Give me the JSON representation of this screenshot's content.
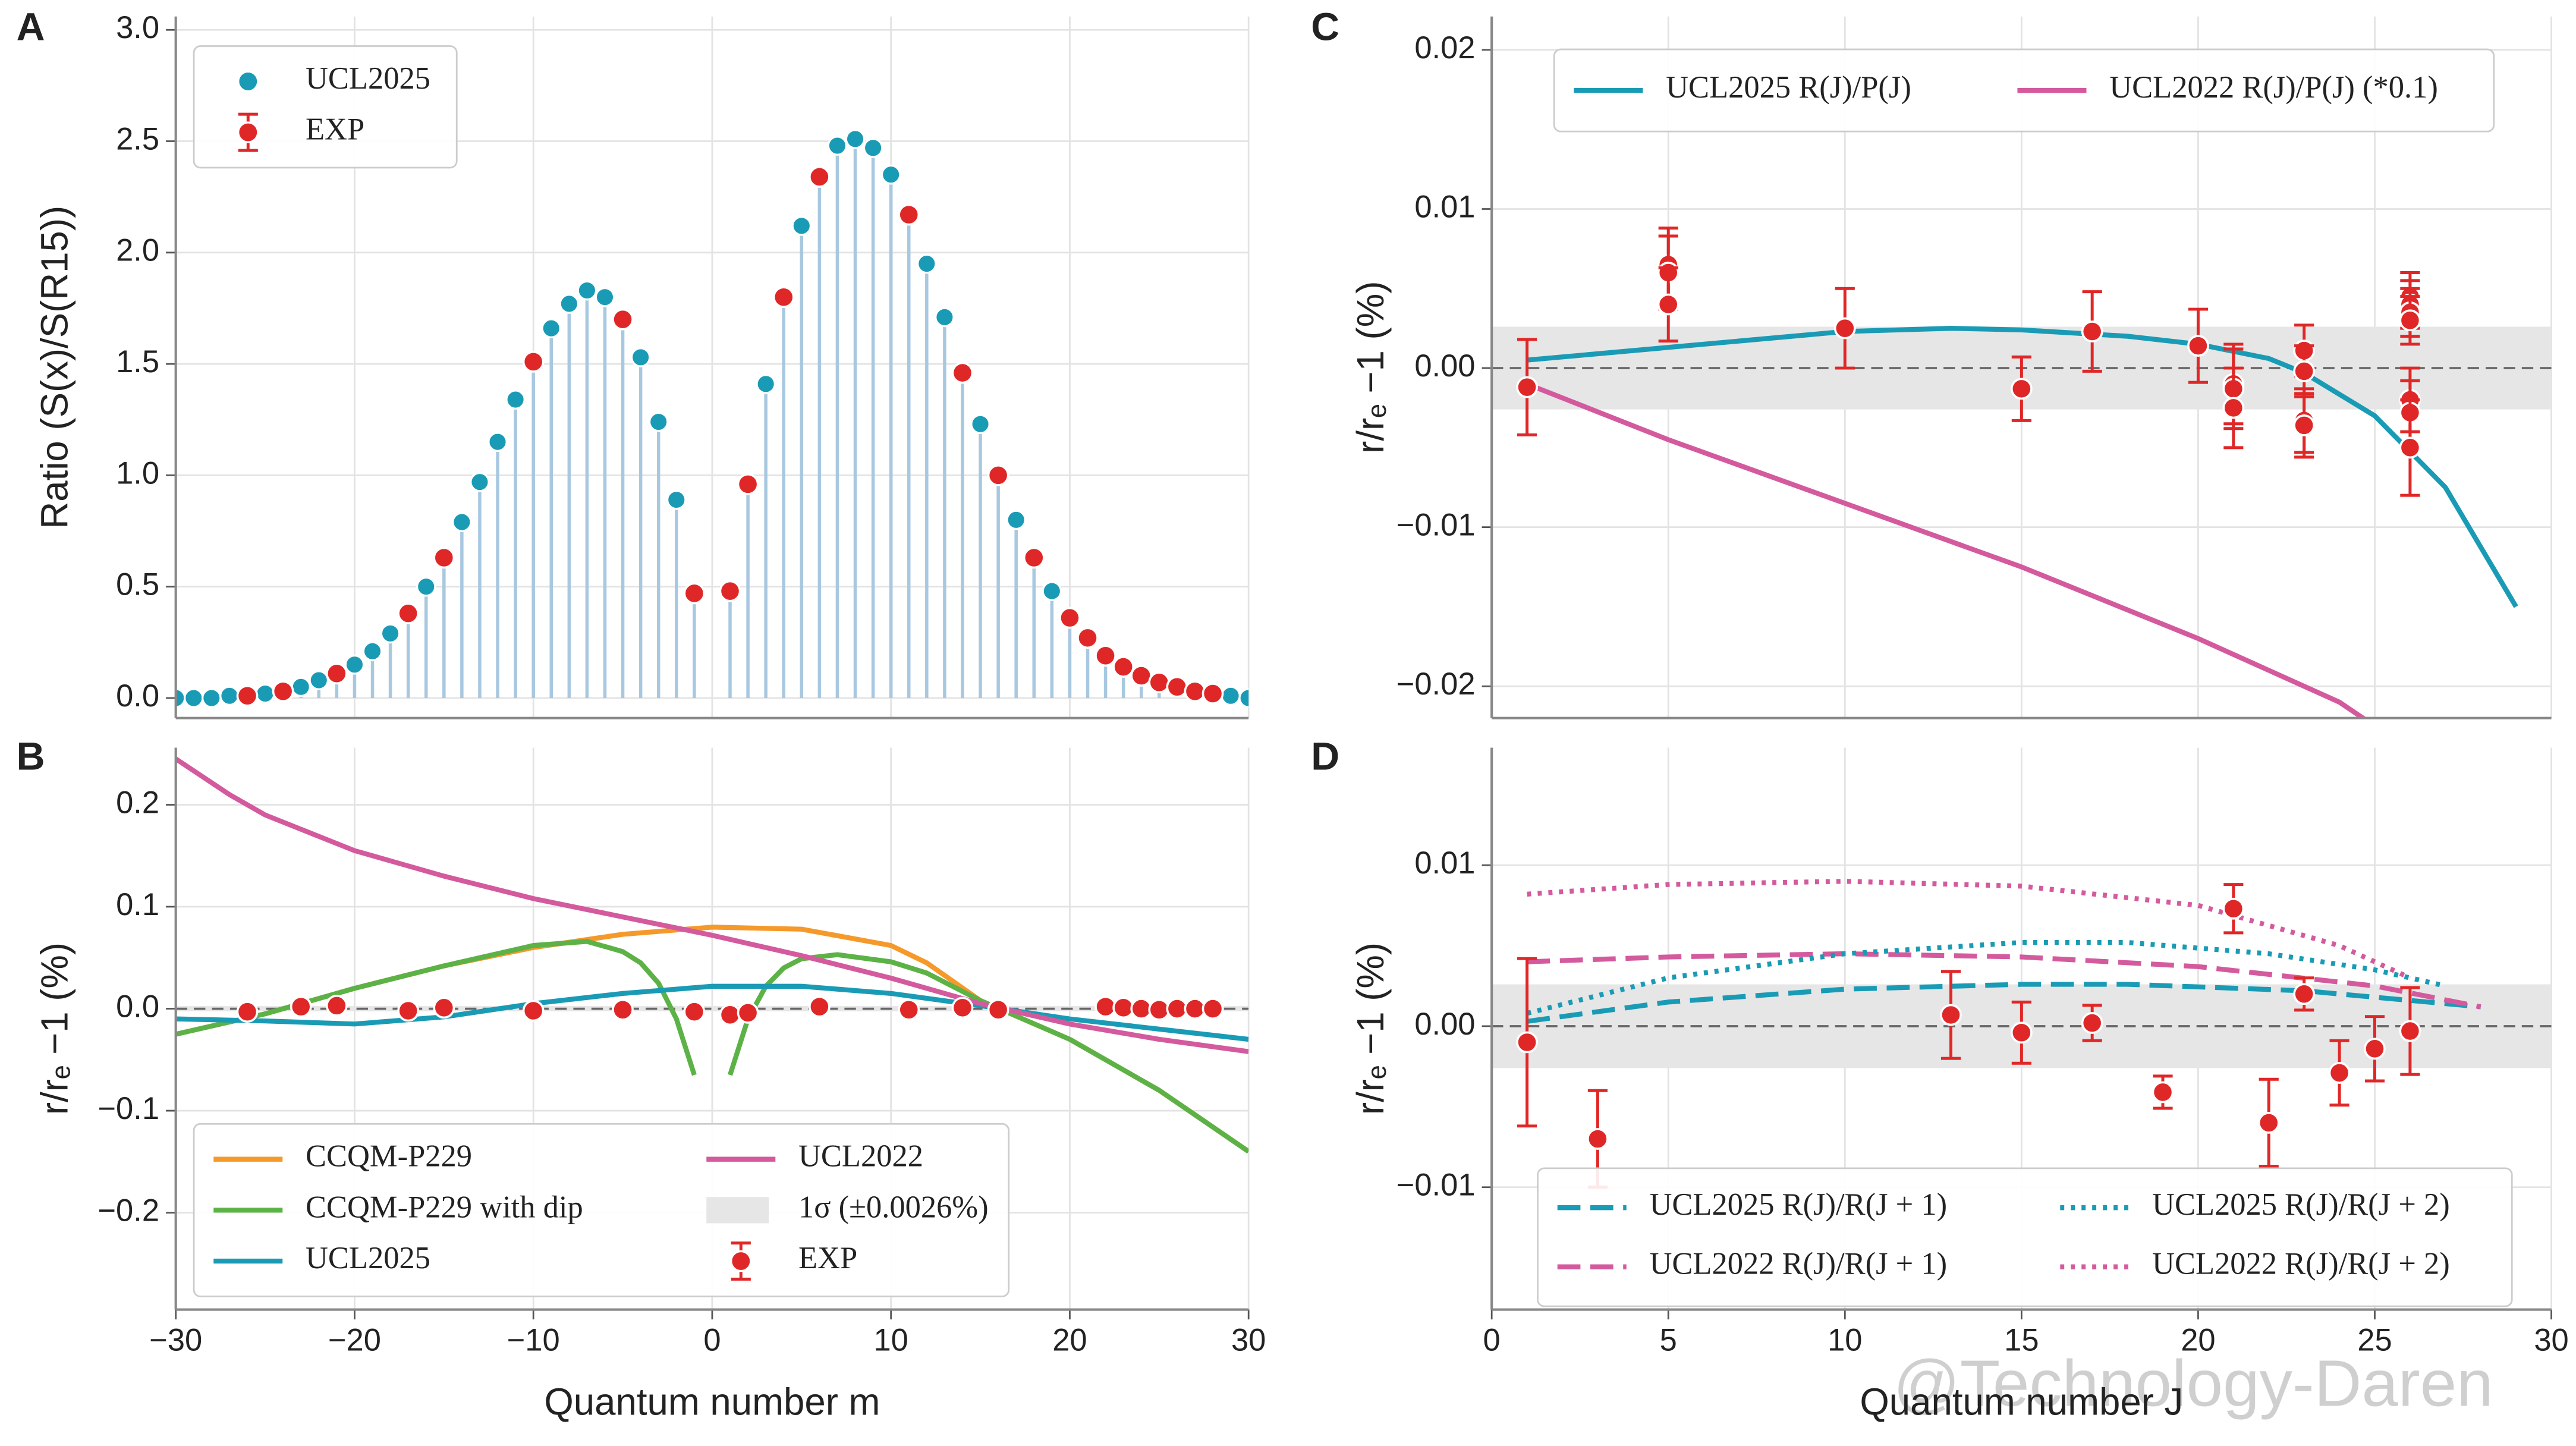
{
  "chart_data": [
    {
      "type": "stem",
      "panel": "A",
      "ylabel": "Ratio (S(x)/S(R15))",
      "xlim": [
        -30,
        30
      ],
      "xticks": [
        -30,
        -20,
        -10,
        0,
        10,
        20,
        30
      ],
      "xtick_labels": false,
      "ylim": [
        -0.09,
        3.06
      ],
      "yticks": [
        {
          "value": 0,
          "label": "0.0"
        },
        0.5,
        {
          "value": 1,
          "label": "1.0"
        },
        1.5,
        {
          "value": 2,
          "label": "2.0"
        },
        2.5,
        {
          "value": 3,
          "label": "3.0"
        }
      ],
      "grid": true,
      "stem_color": "#a8c8e0",
      "legend_cols": 1,
      "series": [
        {
          "name": "UCL2025",
          "kind": "stem",
          "color": "#1a9bb5",
          "x": [
            -30,
            -29,
            -28,
            -27,
            -26,
            -25,
            -24,
            -23,
            -22,
            -21,
            -20,
            -19,
            -18,
            -17,
            -16,
            -15,
            -14,
            -13,
            -12,
            -11,
            -10,
            -9,
            -8,
            -7,
            -6,
            -5,
            -4,
            -3,
            -2,
            -1,
            1,
            2,
            3,
            4,
            5,
            6,
            7,
            8,
            9,
            10,
            11,
            12,
            13,
            14,
            15,
            16,
            17,
            18,
            19,
            20,
            21,
            22,
            23,
            24,
            25,
            26,
            27,
            28,
            29,
            30
          ],
          "values": [
            0.0,
            0.0,
            0.0,
            0.01,
            0.01,
            0.02,
            0.03,
            0.05,
            0.08,
            0.11,
            0.15,
            0.21,
            0.29,
            0.38,
            0.5,
            0.63,
            0.79,
            0.97,
            1.15,
            1.34,
            1.51,
            1.66,
            1.77,
            1.83,
            1.8,
            1.7,
            1.53,
            1.24,
            0.89,
            0.47,
            0.48,
            0.96,
            1.41,
            1.8,
            2.12,
            2.34,
            2.48,
            2.51,
            2.47,
            2.35,
            2.17,
            1.95,
            1.71,
            1.46,
            1.23,
            1.0,
            0.8,
            0.63,
            0.48,
            0.36,
            0.27,
            0.19,
            0.14,
            0.1,
            0.07,
            0.05,
            0.03,
            0.02,
            0.01,
            0.0
          ]
        },
        {
          "name": "EXP",
          "kind": "points",
          "color": "#e02727",
          "x": [
            -26,
            -24,
            -21,
            -17,
            -15,
            -10,
            -5,
            -1,
            1,
            2,
            4,
            6,
            11,
            14,
            16,
            18,
            20,
            21,
            22,
            23,
            24,
            25,
            26,
            27,
            28
          ],
          "values": [
            0.01,
            0.03,
            0.11,
            0.38,
            0.63,
            1.51,
            1.7,
            0.47,
            0.48,
            0.96,
            1.8,
            2.34,
            2.17,
            1.46,
            1.0,
            0.63,
            0.36,
            0.27,
            0.19,
            0.14,
            0.1,
            0.07,
            0.05,
            0.03,
            0.02
          ]
        }
      ]
    },
    {
      "type": "line",
      "panel": "B",
      "ylabel": "r/rₑ −1 (%)",
      "xlabel": "Quantum number  m",
      "xlim": [
        -30,
        30
      ],
      "xticks": [
        {
          "value": -30,
          "label": "−30"
        },
        {
          "value": -20,
          "label": "−20"
        },
        {
          "value": -10,
          "label": "−10"
        },
        0,
        10,
        20,
        30
      ],
      "ylim": [
        -0.295,
        0.256
      ],
      "yticks": [
        {
          "value": -0.2,
          "label": "−0.2"
        },
        {
          "value": -0.1,
          "label": "−0.1"
        },
        {
          "value": 0,
          "label": "0.0"
        },
        0.1,
        0.2
      ],
      "grid": true,
      "zero_line": true,
      "band": 0.0026,
      "band_label": "1σ (±0.0026%)",
      "band_color": "#e6e6e6",
      "legend_cols": 2,
      "series": [
        {
          "name": "CCQM-P229",
          "kind": "line",
          "color": "#f5992a",
          "x": [
            -30,
            -25,
            -20,
            -15,
            -10,
            -5,
            0,
            5,
            10,
            12,
            15,
            20,
            25,
            30
          ],
          "values": [
            -0.025,
            -0.005,
            0.02,
            0.042,
            0.06,
            0.073,
            0.08,
            0.078,
            0.062,
            0.045,
            0.008,
            -0.03,
            -0.08,
            -0.14
          ]
        },
        {
          "name": "CCQM-P229 with dip",
          "kind": "line",
          "color": "#5cb246",
          "x": [
            -30,
            -25,
            -20,
            -15,
            -10,
            -7,
            -5,
            -4,
            -3,
            -2,
            -1,
            0,
            1,
            2,
            3,
            4,
            5,
            7,
            10,
            12,
            15,
            20,
            25,
            30
          ],
          "values": [
            -0.025,
            -0.005,
            0.02,
            0.042,
            0.062,
            0.066,
            0.056,
            0.045,
            0.025,
            -0.01,
            -0.065,
            null,
            -0.065,
            -0.01,
            0.022,
            0.04,
            0.049,
            0.053,
            0.046,
            0.035,
            0.008,
            -0.03,
            -0.08,
            -0.14
          ]
        },
        {
          "name": "UCL2025",
          "kind": "line",
          "color": "#1a9bb5",
          "x": [
            -30,
            -25,
            -20,
            -15,
            -10,
            -5,
            0,
            5,
            10,
            15,
            20,
            25,
            30
          ],
          "values": [
            -0.01,
            -0.012,
            -0.015,
            -0.008,
            0.005,
            0.015,
            0.022,
            0.022,
            0.015,
            0.003,
            -0.01,
            -0.02,
            -0.03
          ]
        },
        {
          "name": "UCL2022",
          "kind": "line",
          "color": "#d45a9e",
          "x": [
            -30,
            -27,
            -25,
            -20,
            -15,
            -10,
            -5,
            0,
            5,
            10,
            15,
            20,
            25,
            30
          ],
          "values": [
            0.245,
            0.21,
            0.19,
            0.155,
            0.13,
            0.108,
            0.09,
            0.072,
            0.052,
            0.03,
            0.005,
            -0.015,
            -0.03,
            -0.042
          ]
        },
        {
          "name": "EXP",
          "kind": "points",
          "color": "#e02727",
          "x": [
            -26,
            -23,
            -21,
            -17,
            -15,
            -10,
            -5,
            -1,
            1,
            2,
            6,
            11,
            14,
            16,
            22,
            23,
            24,
            25,
            26,
            27,
            28
          ],
          "values": [
            -0.003,
            0.002,
            0.003,
            -0.002,
            0.001,
            -0.002,
            -0.001,
            -0.003,
            -0.006,
            -0.004,
            0.002,
            -0.001,
            0.001,
            -0.001,
            0.002,
            0.001,
            0.0,
            -0.001,
            0.0,
            0.0,
            0.0
          ]
        }
      ]
    },
    {
      "type": "line",
      "panel": "C",
      "ylabel": "r/rₑ −1 (%)",
      "xlim": [
        0,
        30
      ],
      "xticks": [
        0,
        5,
        10,
        15,
        20,
        25,
        30
      ],
      "xtick_labels": false,
      "ylim": [
        -0.022,
        0.0221
      ],
      "yticks": [
        {
          "value": -0.02,
          "label": "−0.02"
        },
        {
          "value": -0.01,
          "label": "−0.01"
        },
        {
          "value": 0,
          "label": "0.00"
        },
        0.01,
        0.02
      ],
      "grid": true,
      "zero_line": true,
      "band": 0.0026,
      "band_color": "#e6e6e6",
      "legend_cols": 2,
      "series": [
        {
          "name": "UCL2025  R(J)/P(J)",
          "kind": "line",
          "color": "#1a9bb5",
          "x": [
            1,
            5,
            10,
            13,
            15,
            18,
            20,
            22,
            23,
            25,
            27,
            29
          ],
          "values": [
            0.0005,
            0.0013,
            0.0023,
            0.0025,
            0.0024,
            0.002,
            0.0015,
            0.0006,
            -0.0003,
            -0.003,
            -0.0075,
            -0.015
          ]
        },
        {
          "name": "UCL2022  R(J)/P(J)  (*0.1)",
          "kind": "line",
          "color": "#d45a9e",
          "x": [
            1,
            5,
            10,
            15,
            20,
            24,
            25
          ],
          "values": [
            -0.001,
            -0.0045,
            -0.0085,
            -0.0125,
            -0.017,
            -0.021,
            -0.0225
          ]
        },
        {
          "kind": "points",
          "color": "#e02727",
          "x": [
            1,
            5,
            5,
            5,
            10,
            15,
            17,
            20,
            21,
            21,
            21,
            23,
            23,
            23,
            23,
            26,
            26,
            26,
            26,
            26,
            26,
            26
          ],
          "values": [
            -0.0012,
            0.0065,
            0.006,
            0.004,
            0.0025,
            -0.0013,
            0.0023,
            0.0014,
            -0.001,
            -0.0013,
            -0.0025,
            0.0011,
            -0.0002,
            -0.0033,
            -0.0036,
            0.0045,
            0.004,
            0.0035,
            0.003,
            -0.002,
            -0.0028,
            -0.005
          ],
          "errors": [
            0.003,
            0.0023,
            0.0023,
            0.0023,
            0.0025,
            0.002,
            0.0025,
            0.0023,
            0.0025,
            0.0025,
            0.0025,
            0.0016,
            0.0016,
            0.002,
            0.002,
            0.0015,
            0.0015,
            0.0015,
            0.0015,
            0.002,
            0.002,
            0.003
          ]
        }
      ]
    },
    {
      "type": "line",
      "panel": "D",
      "ylabel": "r/rₑ −1 (%)",
      "xlabel": "Quantum number  J",
      "xlim": [
        0,
        30
      ],
      "xticks": [
        0,
        5,
        10,
        15,
        20,
        25,
        30
      ],
      "ylim": [
        -0.0176,
        0.0173
      ],
      "yticks": [
        {
          "value": -0.01,
          "label": "−0.01"
        },
        {
          "value": 0,
          "label": "0.00"
        },
        0.01
      ],
      "grid": true,
      "zero_line": true,
      "band": 0.0026,
      "band_color": "#e6e6e6",
      "legend_cols": 2,
      "series": [
        {
          "name": "UCL2025 R(J)/R(J + 1)",
          "kind": "line",
          "dash": "dashed",
          "color": "#1a9bb5",
          "x": [
            1,
            5,
            10,
            15,
            18,
            23,
            28
          ],
          "values": [
            0.0003,
            0.0015,
            0.0023,
            0.0026,
            0.0026,
            0.0022,
            0.0012
          ]
        },
        {
          "name": "UCL2022 R(J)/R(J + 1)",
          "kind": "line",
          "dash": "dashed",
          "color": "#d45a9e",
          "x": [
            1,
            5,
            10,
            15,
            20,
            25,
            28
          ],
          "values": [
            0.004,
            0.0043,
            0.0045,
            0.0043,
            0.0037,
            0.0025,
            0.0012
          ]
        },
        {
          "name": "UCL2025  R(J)/R(J + 2)",
          "kind": "line",
          "dash": "dotted",
          "color": "#1a9bb5",
          "x": [
            1,
            5,
            10,
            15,
            18,
            22,
            25,
            27
          ],
          "values": [
            0.0008,
            0.003,
            0.0045,
            0.0052,
            0.0052,
            0.0045,
            0.0035,
            0.0025
          ]
        },
        {
          "name": "UCL2022  R(J)/R(J + 2)",
          "kind": "line",
          "dash": "dotted",
          "color": "#d45a9e",
          "x": [
            1,
            5,
            10,
            15,
            20,
            24,
            26
          ],
          "values": [
            0.0082,
            0.0088,
            0.009,
            0.0087,
            0.0075,
            0.005,
            0.003
          ]
        },
        {
          "kind": "points",
          "color": "#e02727",
          "x": [
            1,
            3,
            13,
            15,
            17,
            19,
            21,
            22,
            23,
            24,
            25,
            26
          ],
          "values": [
            -0.001,
            -0.007,
            0.0007,
            -0.0004,
            0.0002,
            -0.0041,
            0.0073,
            -0.006,
            0.002,
            -0.0029,
            -0.0014,
            -0.0003
          ],
          "errors": [
            0.0052,
            0.003,
            0.0027,
            0.0019,
            0.0011,
            0.001,
            0.0015,
            0.0027,
            0.001,
            0.002,
            0.002,
            0.0027
          ]
        }
      ]
    }
  ],
  "watermark": "@Technology-Daren"
}
